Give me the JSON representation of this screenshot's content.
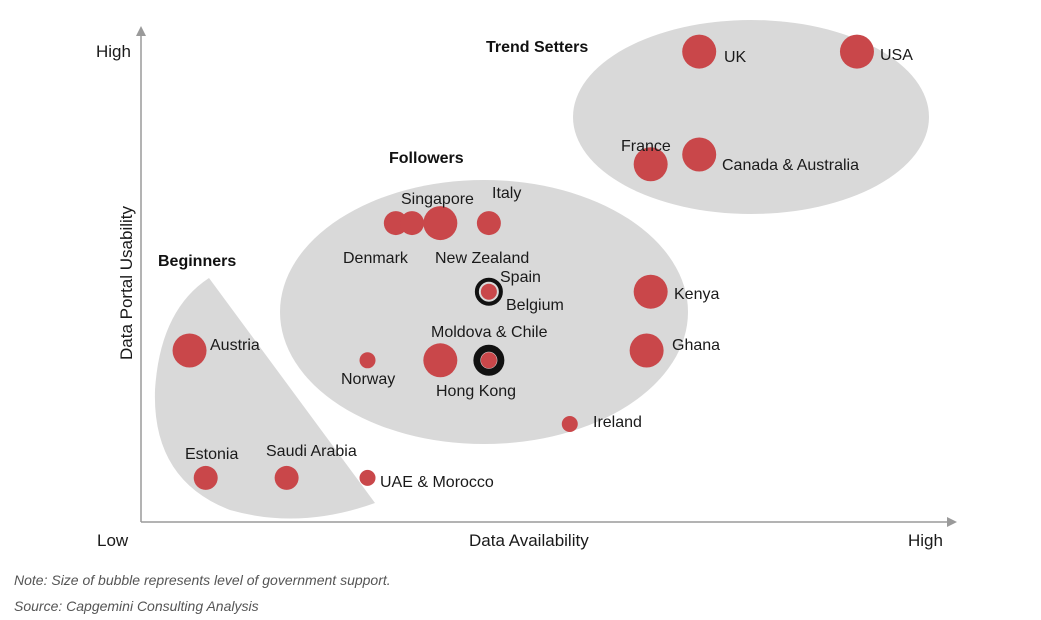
{
  "chart_data": {
    "type": "scatter",
    "variant": "bubble",
    "xlabel": "Data Availability",
    "ylabel": "Data Portal Usability",
    "x_tick_labels": {
      "low": "Low",
      "high": "High"
    },
    "y_tick_labels": {
      "high": "High"
    },
    "xlim": [
      0,
      100
    ],
    "ylim": [
      0,
      100
    ],
    "groups": [
      {
        "name": "Trend Setters",
        "color": "#d9d9d9"
      },
      {
        "name": "Followers",
        "color": "#d9d9d9"
      },
      {
        "name": "Beginners",
        "color": "#d9d9d9"
      }
    ],
    "points": [
      {
        "label": "UK",
        "x": 69,
        "y": 96,
        "size": 3,
        "group": "Trend Setters",
        "highlight": false
      },
      {
        "label": "USA",
        "x": 88.5,
        "y": 96,
        "size": 3,
        "group": "Trend Setters",
        "highlight": false
      },
      {
        "label": "France",
        "x": 63,
        "y": 73,
        "size": 3,
        "group": "Trend Setters",
        "highlight": false
      },
      {
        "label": "Canada & Australia",
        "x": 69,
        "y": 75,
        "size": 3,
        "group": "Trend Setters",
        "highlight": false
      },
      {
        "label": "Denmark",
        "x": 31.5,
        "y": 61,
        "size": 2,
        "group": "Followers",
        "highlight": false
      },
      {
        "label": "Denmark",
        "x": 33.5,
        "y": 61,
        "size": 2,
        "group": "Followers",
        "highlight": false
      },
      {
        "label": "Singapore",
        "x": 37,
        "y": 61,
        "size": 3,
        "group": "Followers",
        "highlight": false
      },
      {
        "label": "Italy",
        "x": 43,
        "y": 61,
        "size": 2,
        "group": "Followers",
        "highlight": false
      },
      {
        "label": "New Zealand",
        "x": 37,
        "y": 61,
        "size": 0,
        "group": "Followers",
        "highlight": false
      },
      {
        "label": "Spain",
        "x": 43,
        "y": 47,
        "size": 1,
        "group": "Followers",
        "highlight": true
      },
      {
        "label": "Belgium",
        "x": 43,
        "y": 47,
        "size": 0,
        "group": "Followers",
        "highlight": false
      },
      {
        "label": "Kenya",
        "x": 63,
        "y": 47,
        "size": 3,
        "group": "Followers",
        "highlight": false
      },
      {
        "label": "Moldova & Chile",
        "x": 43,
        "y": 33,
        "size": 1,
        "group": "Followers",
        "highlight": true
      },
      {
        "label": "Norway",
        "x": 28,
        "y": 33,
        "size": 1,
        "group": "Followers",
        "highlight": false
      },
      {
        "label": "Hong Kong",
        "x": 37,
        "y": 33,
        "size": 3,
        "group": "Followers",
        "highlight": false
      },
      {
        "label": "Ghana",
        "x": 62.5,
        "y": 35,
        "size": 3,
        "group": "Followers",
        "highlight": false
      },
      {
        "label": "Ireland",
        "x": 53,
        "y": 20,
        "size": 1,
        "group": "Followers",
        "highlight": false
      },
      {
        "label": "Austria",
        "x": 6,
        "y": 35,
        "size": 3,
        "group": "Beginners",
        "highlight": false
      },
      {
        "label": "Estonia",
        "x": 8,
        "y": 9,
        "size": 2,
        "group": "Beginners",
        "highlight": false
      },
      {
        "label": "Saudi Arabia",
        "x": 18,
        "y": 9,
        "size": 2,
        "group": "Beginners",
        "highlight": false
      },
      {
        "label": "UAE & Morocco",
        "x": 28,
        "y": 9,
        "size": 1,
        "group": "Beginners",
        "highlight": false
      }
    ],
    "note": "Note: Size of bubble represents level of government support.",
    "source": "Source: Capgemini Consulting Analysis"
  },
  "colors": {
    "bubble": "#c9474a",
    "group_fill": "#d9d9d9",
    "axis": "#9a9a9a",
    "highlight_ring": "#111111"
  }
}
